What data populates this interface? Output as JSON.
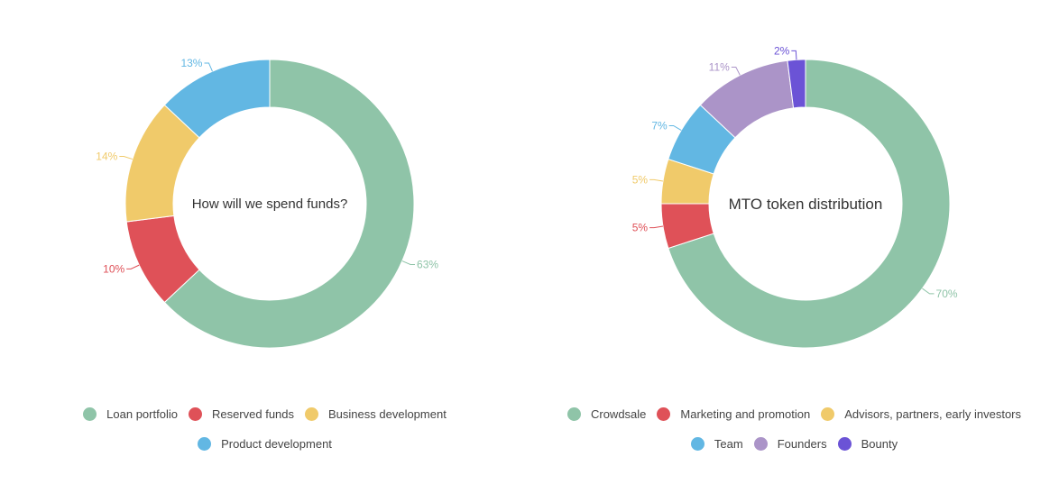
{
  "chart_data": [
    {
      "type": "pie",
      "title": "How will we spend funds?",
      "categories": [
        "Loan portfolio",
        "Reserved funds",
        "Business development",
        "Product development"
      ],
      "values": [
        63,
        10,
        14,
        13
      ],
      "value_labels": [
        "63%",
        "10%",
        "14%",
        "13%"
      ],
      "colors": [
        "#8fc4a8",
        "#df5158",
        "#f0ca6a",
        "#62b7e3"
      ],
      "legend_position": "bottom"
    },
    {
      "type": "pie",
      "title": "MTO token distribution",
      "categories": [
        "Crowdsale",
        "Marketing and promotion",
        "Advisors, partners, early investors",
        "Team",
        "Founders",
        "Bounty"
      ],
      "values": [
        70,
        5,
        5,
        7,
        11,
        2
      ],
      "value_labels": [
        "70%",
        "5%",
        "5%",
        "7%",
        "11%",
        "2%"
      ],
      "colors": [
        "#8fc4a8",
        "#df5158",
        "#f0ca6a",
        "#62b7e3",
        "#ab94c8",
        "#6b53d6"
      ],
      "legend_position": "bottom"
    }
  ]
}
